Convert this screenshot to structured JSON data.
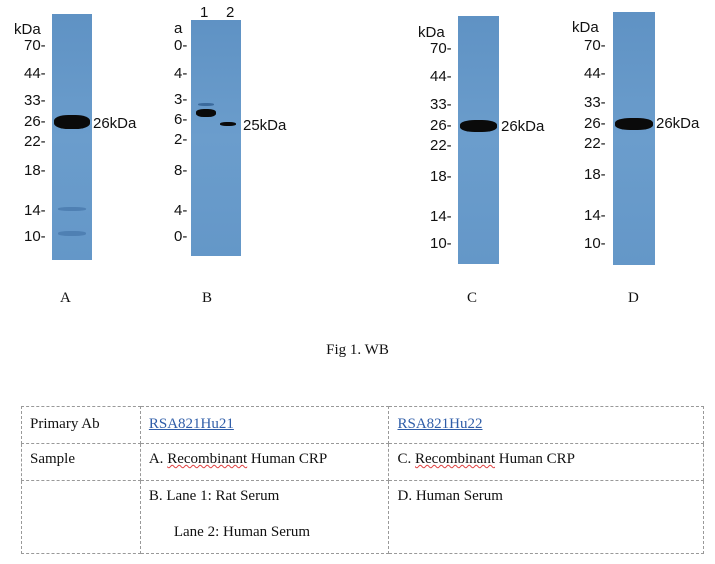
{
  "panels": {
    "A": {
      "kda": "kDa",
      "markers": [
        "70-",
        "44-",
        "33-",
        "26-",
        "22-",
        "18-",
        "14-",
        "10-"
      ],
      "band_label": "26kDa",
      "letter": "A"
    },
    "B": {
      "kda": "a",
      "lanes": [
        "1",
        "2"
      ],
      "markers": [
        "0-",
        "4-",
        "3-",
        "6-",
        "2-",
        "8-",
        "4-",
        "0-"
      ],
      "band_label": "25kDa",
      "letter": "B"
    },
    "C": {
      "kda": "kDa",
      "markers": [
        "70-",
        "44-",
        "33-",
        "26-",
        "22-",
        "18-",
        "14-",
        "10-"
      ],
      "band_label": "26kDa",
      "letter": "C"
    },
    "D": {
      "kda": "kDa",
      "markers": [
        "70-",
        "44-",
        "33-",
        "26-",
        "22-",
        "18-",
        "14-",
        "10-"
      ],
      "band_label": "26kDa",
      "letter": "D"
    }
  },
  "caption": "Fig 1. WB",
  "table": {
    "row1": {
      "label": "Primary Ab",
      "col1": "RSA821Hu21",
      "col2": "RSA821Hu22"
    },
    "row2": {
      "label": "Sample",
      "col1_prefix": "A. ",
      "col1_sq": "Recombinant",
      "col1_rest": " Human CRP",
      "col2_prefix": "C. ",
      "col2_sq": "Recombinant",
      "col2_rest": " Human CRP"
    },
    "row3": {
      "col1_line1": "B. Lane 1: Rat Serum",
      "col1_line2": "Lane 2: Human Serum",
      "col2": "D. Human Serum"
    }
  }
}
